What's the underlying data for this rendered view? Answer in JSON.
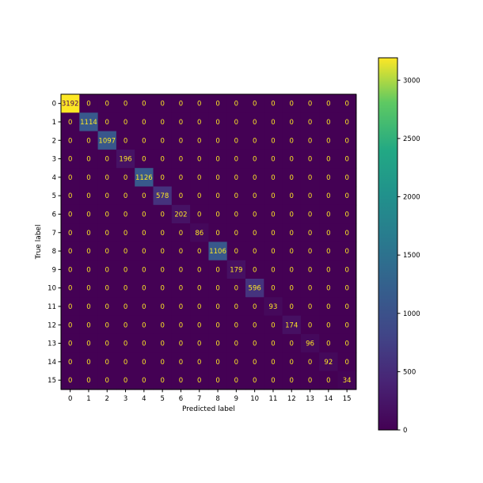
{
  "chart_data": {
    "type": "heatmap",
    "title": "",
    "xlabel": "Predicted label",
    "ylabel": "True label",
    "x_categories": [
      "0",
      "1",
      "2",
      "3",
      "4",
      "5",
      "6",
      "7",
      "8",
      "9",
      "10",
      "11",
      "12",
      "13",
      "14",
      "15"
    ],
    "y_categories": [
      "0",
      "1",
      "2",
      "3",
      "4",
      "5",
      "6",
      "7",
      "8",
      "9",
      "10",
      "11",
      "12",
      "13",
      "14",
      "15"
    ],
    "values": [
      [
        3192,
        0,
        0,
        0,
        0,
        0,
        0,
        0,
        0,
        0,
        0,
        0,
        0,
        0,
        0,
        0
      ],
      [
        0,
        1114,
        0,
        0,
        0,
        0,
        0,
        0,
        0,
        0,
        0,
        0,
        0,
        0,
        0,
        0
      ],
      [
        0,
        0,
        1097,
        0,
        0,
        0,
        0,
        0,
        0,
        0,
        0,
        0,
        0,
        0,
        0,
        0
      ],
      [
        0,
        0,
        0,
        196,
        0,
        0,
        0,
        0,
        0,
        0,
        0,
        0,
        0,
        0,
        0,
        0
      ],
      [
        0,
        0,
        0,
        0,
        1126,
        0,
        0,
        0,
        0,
        0,
        0,
        0,
        0,
        0,
        0,
        0
      ],
      [
        0,
        0,
        0,
        0,
        0,
        578,
        0,
        0,
        0,
        0,
        0,
        0,
        0,
        0,
        0,
        0
      ],
      [
        0,
        0,
        0,
        0,
        0,
        0,
        202,
        0,
        0,
        0,
        0,
        0,
        0,
        0,
        0,
        0
      ],
      [
        0,
        0,
        0,
        0,
        0,
        0,
        0,
        86,
        0,
        0,
        0,
        0,
        0,
        0,
        0,
        0
      ],
      [
        0,
        0,
        0,
        0,
        0,
        0,
        0,
        0,
        1106,
        0,
        0,
        0,
        0,
        0,
        0,
        0
      ],
      [
        0,
        0,
        0,
        0,
        0,
        0,
        0,
        0,
        0,
        179,
        0,
        0,
        0,
        0,
        0,
        0
      ],
      [
        0,
        0,
        0,
        0,
        0,
        0,
        0,
        0,
        0,
        0,
        596,
        0,
        0,
        0,
        0,
        0
      ],
      [
        0,
        0,
        0,
        0,
        0,
        0,
        0,
        0,
        0,
        0,
        0,
        93,
        0,
        0,
        0,
        0
      ],
      [
        0,
        0,
        0,
        0,
        0,
        0,
        0,
        0,
        0,
        0,
        0,
        0,
        174,
        0,
        0,
        0
      ],
      [
        0,
        0,
        0,
        0,
        0,
        0,
        0,
        0,
        0,
        0,
        0,
        0,
        0,
        96,
        0,
        0
      ],
      [
        0,
        0,
        0,
        0,
        0,
        0,
        0,
        0,
        0,
        0,
        0,
        0,
        0,
        0,
        92,
        0
      ],
      [
        0,
        0,
        0,
        0,
        0,
        0,
        0,
        0,
        0,
        0,
        0,
        0,
        0,
        0,
        0,
        34
      ]
    ],
    "colormap": "viridis",
    "colorbar": {
      "ticks": [
        0,
        500,
        1000,
        1500,
        2000,
        2500,
        3000
      ],
      "range": [
        0,
        3192
      ]
    },
    "text_color_light": "#fde725",
    "text_color_dark": "#440154"
  }
}
